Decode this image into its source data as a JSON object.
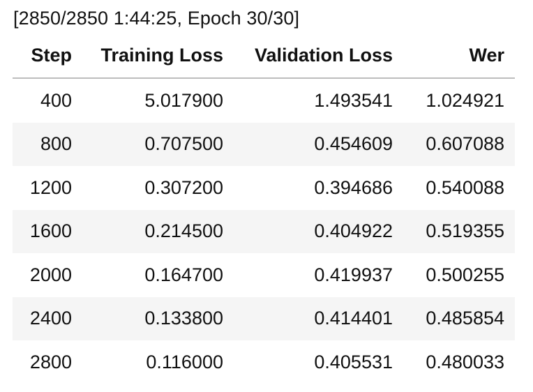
{
  "progress": {
    "text": "[2850/2850 1:44:25, Epoch 30/30]"
  },
  "table": {
    "headers": {
      "step": "Step",
      "training_loss": "Training Loss",
      "validation_loss": "Validation Loss",
      "wer": "Wer"
    },
    "rows": [
      {
        "step": "400",
        "training_loss": "5.017900",
        "validation_loss": "1.493541",
        "wer": "1.024921"
      },
      {
        "step": "800",
        "training_loss": "0.707500",
        "validation_loss": "0.454609",
        "wer": "0.607088"
      },
      {
        "step": "1200",
        "training_loss": "0.307200",
        "validation_loss": "0.394686",
        "wer": "0.540088"
      },
      {
        "step": "1600",
        "training_loss": "0.214500",
        "validation_loss": "0.404922",
        "wer": "0.519355"
      },
      {
        "step": "2000",
        "training_loss": "0.164700",
        "validation_loss": "0.419937",
        "wer": "0.500255"
      },
      {
        "step": "2400",
        "training_loss": "0.133800",
        "validation_loss": "0.414401",
        "wer": "0.485854"
      },
      {
        "step": "2800",
        "training_loss": "0.116000",
        "validation_loss": "0.405531",
        "wer": "0.480033"
      }
    ]
  }
}
